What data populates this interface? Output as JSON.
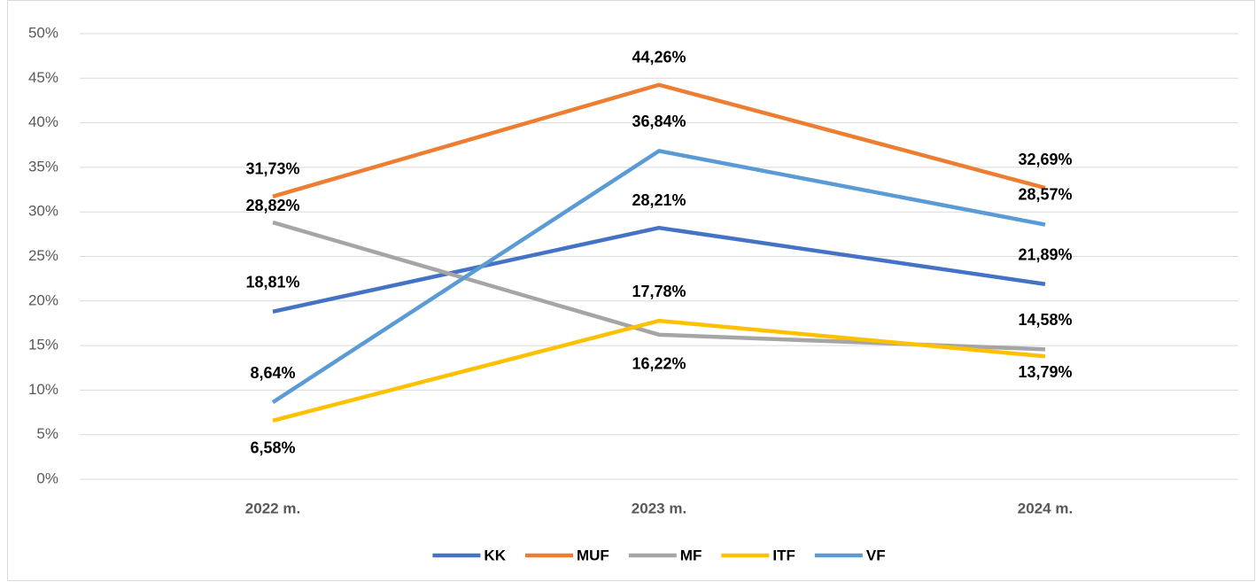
{
  "chart_data": {
    "type": "line",
    "categories": [
      "2022 m.",
      "2023 m.",
      "2024 m."
    ],
    "series": [
      {
        "name": "KK",
        "color": "#4472c4",
        "values": [
          18.81,
          28.21,
          21.89
        ],
        "value_labels": [
          "18,81%",
          "28,21%",
          "21,89%"
        ]
      },
      {
        "name": "MUF",
        "color": "#ed7d31",
        "values": [
          31.73,
          44.26,
          32.69
        ],
        "value_labels": [
          "31,73%",
          "44,26%",
          "32,69%"
        ]
      },
      {
        "name": "MF",
        "color": "#a5a5a5",
        "values": [
          28.82,
          16.22,
          14.58
        ],
        "value_labels": [
          "28,82%",
          "16,22%",
          "14,58%"
        ]
      },
      {
        "name": "ITF",
        "color": "#ffc000",
        "values": [
          6.58,
          17.78,
          13.79
        ],
        "value_labels": [
          "6,58%",
          "17,78%",
          "13,79%"
        ]
      },
      {
        "name": "VF",
        "color": "#5b9bd5",
        "values": [
          8.64,
          36.84,
          28.57
        ],
        "value_labels": [
          "8,64%",
          "36,84%",
          "28,57%"
        ]
      }
    ],
    "ylim": [
      0,
      50
    ],
    "yticks": [
      {
        "value": 0,
        "label": "0%"
      },
      {
        "value": 5,
        "label": "5%"
      },
      {
        "value": 10,
        "label": "10%"
      },
      {
        "value": 15,
        "label": "15%"
      },
      {
        "value": 20,
        "label": "20%"
      },
      {
        "value": 25,
        "label": "25%"
      },
      {
        "value": 30,
        "label": "30%"
      },
      {
        "value": 35,
        "label": "35%"
      },
      {
        "value": 40,
        "label": "40%"
      },
      {
        "value": 45,
        "label": "45%"
      },
      {
        "value": 50,
        "label": "50%"
      }
    ],
    "grid": true,
    "legend": "bottom"
  }
}
